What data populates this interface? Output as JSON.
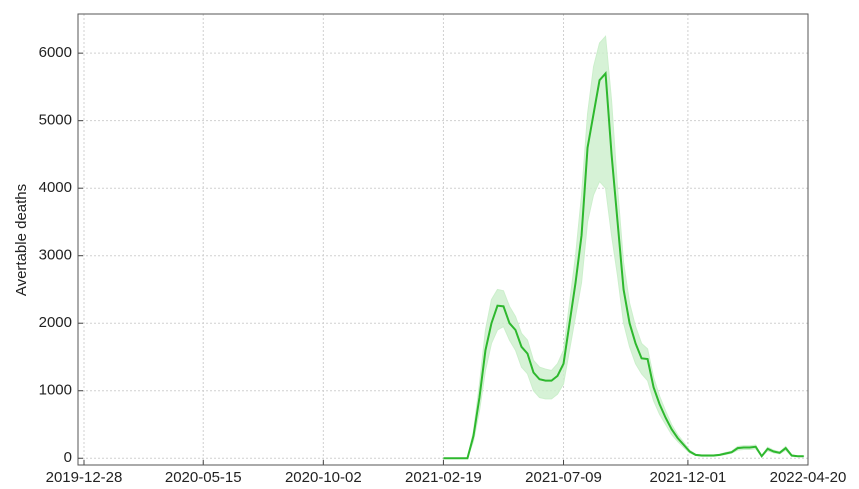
{
  "chart_data": {
    "type": "line",
    "y_label": "Avertable deaths",
    "x": [
      "2021-02-19",
      "2021-02-26",
      "2021-03-05",
      "2021-03-12",
      "2021-03-19",
      "2021-03-26",
      "2021-04-02",
      "2021-04-09",
      "2021-04-16",
      "2021-04-23",
      "2021-04-30",
      "2021-05-07",
      "2021-05-14",
      "2021-05-21",
      "2021-05-28",
      "2021-06-04",
      "2021-06-11",
      "2021-06-18",
      "2021-06-25",
      "2021-07-02",
      "2021-07-09",
      "2021-07-16",
      "2021-07-23",
      "2021-07-30",
      "2021-08-06",
      "2021-08-13",
      "2021-08-20",
      "2021-08-27",
      "2021-09-03",
      "2021-09-10",
      "2021-09-17",
      "2021-09-24",
      "2021-10-01",
      "2021-10-08",
      "2021-10-15",
      "2021-10-22",
      "2021-10-29",
      "2021-11-05",
      "2021-11-12",
      "2021-11-19",
      "2021-11-26",
      "2021-12-03",
      "2021-12-10",
      "2021-12-17",
      "2021-12-24",
      "2021-12-31",
      "2022-01-07",
      "2022-01-14",
      "2022-01-21",
      "2022-01-28",
      "2022-02-04",
      "2022-02-11",
      "2022-02-18",
      "2022-02-25",
      "2022-03-04",
      "2022-03-11",
      "2022-03-18",
      "2022-03-25",
      "2022-04-01",
      "2022-04-08",
      "2022-04-15"
    ],
    "series": [
      {
        "color": "#2eb82e",
        "band_color": "#ccefcc",
        "values": [
          0,
          0,
          0,
          0,
          0,
          330,
          900,
          1600,
          2000,
          2260,
          2250,
          2000,
          1900,
          1650,
          1550,
          1270,
          1170,
          1150,
          1150,
          1220,
          1400,
          2000,
          2600,
          3300,
          4600,
          5100,
          5600,
          5700,
          4500,
          3500,
          2500,
          2000,
          1700,
          1480,
          1470,
          1050,
          800,
          600,
          430,
          300,
          200,
          100,
          50,
          40,
          40,
          40,
          50,
          70,
          90,
          150,
          160,
          160,
          170,
          30,
          140,
          100,
          80,
          150,
          40,
          30,
          30
        ],
        "lower": [
          0,
          0,
          0,
          0,
          0,
          250,
          700,
          1300,
          1700,
          1900,
          1950,
          1750,
          1600,
          1350,
          1250,
          1000,
          900,
          880,
          880,
          950,
          1100,
          1600,
          2100,
          2600,
          3500,
          3900,
          4100,
          4000,
          3300,
          2700,
          2000,
          1650,
          1400,
          1250,
          1150,
          850,
          650,
          500,
          350,
          250,
          160,
          80,
          40,
          30,
          30,
          30,
          40,
          55,
          75,
          120,
          130,
          130,
          140,
          25,
          110,
          80,
          65,
          120,
          30,
          25,
          25
        ],
        "upper": [
          0,
          0,
          0,
          0,
          0,
          400,
          1100,
          1900,
          2350,
          2500,
          2480,
          2250,
          2100,
          1850,
          1750,
          1450,
          1350,
          1320,
          1300,
          1400,
          1600,
          2300,
          3000,
          3900,
          5100,
          5800,
          6150,
          6250,
          5300,
          4000,
          2900,
          2300,
          1950,
          1700,
          1620,
          1200,
          920,
          700,
          500,
          350,
          240,
          120,
          60,
          50,
          50,
          50,
          60,
          85,
          105,
          175,
          185,
          185,
          195,
          35,
          165,
          120,
          95,
          175,
          50,
          35,
          35
        ]
      }
    ],
    "xlim": [
      "2019-12-21",
      "2022-04-20"
    ],
    "xticks": [
      "2019-12-28",
      "2020-05-15",
      "2020-10-02",
      "2021-02-19",
      "2021-07-09",
      "2021-12-01",
      "2022-04-20"
    ],
    "ylim": [
      -100,
      6580
    ],
    "yticks": [
      0,
      1000,
      2000,
      3000,
      4000,
      5000,
      6000
    ],
    "grid": true
  }
}
